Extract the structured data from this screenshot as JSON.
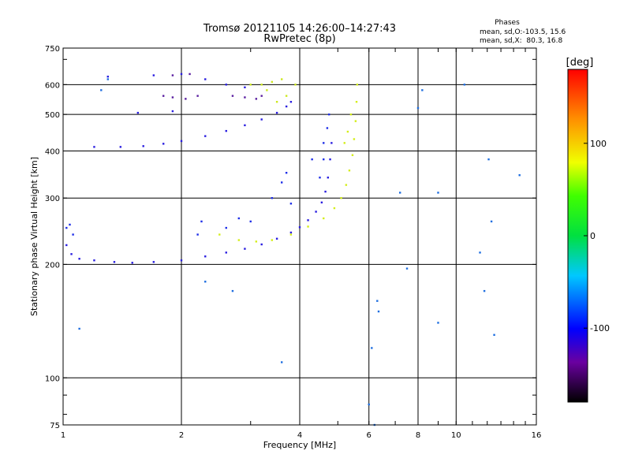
{
  "chart_data": {
    "type": "scatter",
    "title": "Tromsø 20121105 14:26:00–14:27:43",
    "subtitle": "RwPretec (8p)",
    "xlabel": "Frequency [MHz]",
    "ylabel": "Stationary phase Virtual Height [km]",
    "x_scale": "log",
    "y_scale": "log",
    "xlim": [
      1,
      16
    ],
    "ylim": [
      75,
      750
    ],
    "x_ticks": [
      1,
      2,
      4,
      6,
      8,
      10,
      16
    ],
    "x_tick_labels": [
      "1",
      "2",
      "4",
      "6",
      "8",
      "10",
      "16"
    ],
    "y_ticks": [
      75,
      100,
      200,
      300,
      400,
      500,
      600,
      750
    ],
    "y_tick_labels": [
      "75",
      "100",
      "200",
      "300",
      "400",
      "500",
      "600",
      "750"
    ],
    "grid": true,
    "stats": {
      "title": "Phases",
      "line_o": "mean, sd,O:-103.5, 15.6",
      "line_x": "mean, sd,X:  80.3, 16.8"
    },
    "colorbar": {
      "label": "[deg]",
      "min": -180,
      "max": 180,
      "ticks": [
        100,
        0,
        -100
      ],
      "tick_labels": [
        "100",
        "0",
        "-100"
      ]
    },
    "series": [
      {
        "id": "o_trace_F",
        "color": "#2a1ee0",
        "points": [
          [
            1.02,
            225
          ],
          [
            1.05,
            213
          ],
          [
            1.1,
            207
          ],
          [
            1.2,
            205
          ],
          [
            1.35,
            203
          ],
          [
            1.5,
            202
          ],
          [
            1.7,
            203
          ],
          [
            2.0,
            205
          ],
          [
            2.3,
            210
          ],
          [
            2.6,
            215
          ],
          [
            2.9,
            220
          ],
          [
            3.2,
            226
          ],
          [
            3.5,
            234
          ],
          [
            3.8,
            243
          ],
          [
            4.0,
            251
          ],
          [
            4.2,
            262
          ],
          [
            4.4,
            276
          ],
          [
            4.55,
            292
          ],
          [
            4.65,
            312
          ],
          [
            4.72,
            340
          ],
          [
            4.78,
            380
          ],
          [
            4.82,
            420
          ]
        ]
      },
      {
        "id": "o_scatter",
        "color": "#1e2ee8",
        "points": [
          [
            1.02,
            250
          ],
          [
            1.04,
            255
          ],
          [
            1.06,
            240
          ],
          [
            2.2,
            240
          ],
          [
            2.25,
            260
          ],
          [
            2.6,
            250
          ],
          [
            2.8,
            265
          ],
          [
            3.0,
            260
          ],
          [
            3.4,
            300
          ],
          [
            3.6,
            330
          ],
          [
            3.7,
            350
          ],
          [
            3.8,
            290
          ],
          [
            4.3,
            380
          ],
          [
            4.5,
            340
          ],
          [
            4.6,
            420
          ],
          [
            4.7,
            460
          ],
          [
            4.75,
            500
          ],
          [
            4.6,
            380
          ]
        ]
      },
      {
        "id": "o_upper",
        "color": "#2a1ee0",
        "points": [
          [
            1.2,
            410
          ],
          [
            1.4,
            410
          ],
          [
            1.6,
            412
          ],
          [
            1.8,
            418
          ],
          [
            2.0,
            425
          ],
          [
            2.3,
            438
          ],
          [
            2.6,
            452
          ],
          [
            2.9,
            468
          ],
          [
            3.2,
            485
          ],
          [
            3.5,
            505
          ],
          [
            3.7,
            525
          ],
          [
            3.8,
            540
          ],
          [
            1.3,
            630
          ],
          [
            1.7,
            635
          ],
          [
            2.0,
            640
          ],
          [
            2.3,
            620
          ],
          [
            2.6,
            600
          ],
          [
            2.9,
            590
          ],
          [
            1.55,
            505
          ],
          [
            1.9,
            510
          ]
        ]
      },
      {
        "id": "o_dark",
        "color": "#5a1ea0",
        "points": [
          [
            1.8,
            560
          ],
          [
            1.9,
            555
          ],
          [
            2.05,
            550
          ],
          [
            2.2,
            560
          ],
          [
            2.7,
            560
          ],
          [
            2.9,
            555
          ],
          [
            3.1,
            550
          ],
          [
            3.2,
            560
          ],
          [
            1.9,
            635
          ],
          [
            2.1,
            640
          ]
        ]
      },
      {
        "id": "x_trace",
        "color": "#d4ee1a",
        "points": [
          [
            2.5,
            240
          ],
          [
            2.8,
            232
          ],
          [
            3.1,
            230
          ],
          [
            3.4,
            232
          ],
          [
            3.8,
            240
          ],
          [
            4.2,
            252
          ],
          [
            4.6,
            265
          ],
          [
            4.9,
            282
          ],
          [
            5.1,
            300
          ],
          [
            5.25,
            325
          ],
          [
            5.35,
            355
          ],
          [
            5.45,
            390
          ],
          [
            5.5,
            430
          ],
          [
            5.55,
            480
          ],
          [
            5.58,
            540
          ],
          [
            5.6,
            600
          ],
          [
            5.4,
            500
          ],
          [
            5.3,
            450
          ],
          [
            5.2,
            420
          ]
        ]
      },
      {
        "id": "x_upper",
        "color": "#cce81e",
        "points": [
          [
            3.2,
            600
          ],
          [
            3.4,
            610
          ],
          [
            3.6,
            620
          ],
          [
            3.9,
            600
          ],
          [
            3.5,
            540
          ],
          [
            3.7,
            560
          ],
          [
            3.3,
            580
          ],
          [
            3.0,
            600
          ]
        ]
      },
      {
        "id": "noise",
        "color": "#1e6ee0",
        "points": [
          [
            1.25,
            580
          ],
          [
            1.3,
            620
          ],
          [
            7.2,
            310
          ],
          [
            8.0,
            520
          ],
          [
            8.2,
            580
          ],
          [
            9.0,
            310
          ],
          [
            10.5,
            600
          ],
          [
            12.1,
            380
          ],
          [
            12.3,
            260
          ],
          [
            12.5,
            130
          ],
          [
            11.8,
            170
          ],
          [
            11.5,
            215
          ],
          [
            6.3,
            160
          ],
          [
            6.35,
            150
          ],
          [
            6.1,
            120
          ],
          [
            6.0,
            85
          ],
          [
            6.2,
            75
          ],
          [
            3.6,
            110
          ],
          [
            2.3,
            180
          ],
          [
            2.7,
            170
          ],
          [
            1.1,
            135
          ],
          [
            14.5,
            345
          ],
          [
            7.5,
            195
          ],
          [
            9.0,
            140
          ]
        ]
      }
    ]
  }
}
